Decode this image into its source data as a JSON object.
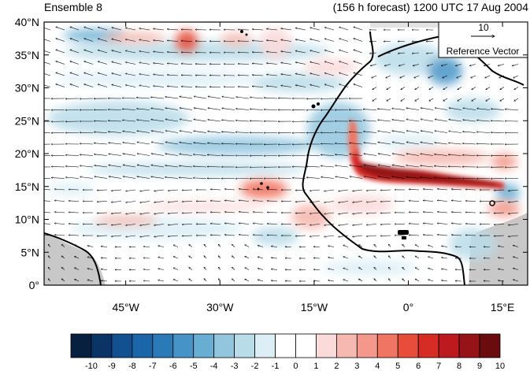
{
  "header": {
    "left_title": "Ensemble 8",
    "forecast": "(156 h forecast)",
    "valid_time": "1200 UTC 17 Aug 2004"
  },
  "map": {
    "lat_labels": [
      "40°N",
      "35°N",
      "30°N",
      "25°N",
      "20°N",
      "15°N",
      "10°N",
      "5°N",
      "0°"
    ],
    "lon_labels": [
      "45°W",
      "30°W",
      "15°W",
      "0°",
      "15°E"
    ],
    "lat_range": [
      0,
      40
    ],
    "lon_range": [
      -58,
      19
    ],
    "land_fill_color": "#c8c8c8",
    "coastline_color": "#000000",
    "vector_color": "#000000"
  },
  "reference_vector": {
    "magnitude": "10",
    "label": "Reference Vector"
  },
  "colorbar": {
    "labels": [
      "-10",
      "-9",
      "-8",
      "-7",
      "-6",
      "-5",
      "-4",
      "-3",
      "-2",
      "-1",
      "0",
      "1",
      "2",
      "3",
      "4",
      "5",
      "6",
      "7",
      "8",
      "9",
      "10"
    ],
    "colors": [
      "#08203f",
      "#0b3466",
      "#12508f",
      "#1a66a8",
      "#2a7ab8",
      "#4694c7",
      "#68aed3",
      "#92c6df",
      "#b9dce9",
      "#dceff6",
      "#ffffff",
      "#ffffff",
      "#fbdada",
      "#f6b9b1",
      "#f3988a",
      "#f07562",
      "#e84d3b",
      "#d72c26",
      "#bd1a1f",
      "#961317",
      "#6a0c0e"
    ]
  }
}
